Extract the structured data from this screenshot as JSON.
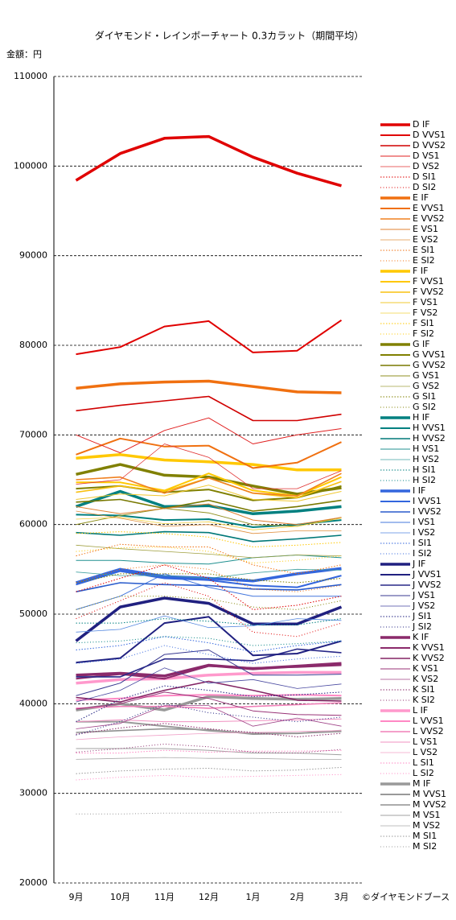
{
  "chart_data": {
    "type": "line",
    "title": "ダイヤモンド・レインボーチャート 0.3カラット（期間平均）",
    "y_label": "金額：円",
    "copyright": "©ダイヤモンドブース",
    "categories": [
      "9月",
      "10月",
      "11月",
      "12月",
      "1月",
      "2月",
      "3月"
    ],
    "ylim": [
      20000,
      110000
    ],
    "yticks": [
      20000,
      30000,
      40000,
      50000,
      60000,
      70000,
      80000,
      90000,
      100000,
      110000
    ],
    "grid": true,
    "legend": "right",
    "series": [
      {
        "name": "D IF",
        "color": "#e00000",
        "values": [
          98400,
          101400,
          103100,
          103300,
          101000,
          99200,
          97800
        ]
      },
      {
        "name": "D VVS1",
        "color": "#e00000",
        "values": [
          79000,
          79800,
          82100,
          82700,
          79200,
          79400,
          82800
        ]
      },
      {
        "name": "D VVS2",
        "color": "#d00000",
        "values": [
          72700,
          73300,
          73800,
          74300,
          71600,
          71600,
          72300
        ]
      },
      {
        "name": "D VS1",
        "color": "#e02020",
        "values": [
          70000,
          68000,
          70500,
          71900,
          69000,
          70000,
          70700
        ]
      },
      {
        "name": "D VS2",
        "color": "#e03030",
        "values": [
          64500,
          65000,
          69000,
          67500,
          64000,
          64000,
          66000
        ]
      },
      {
        "name": "D SI1",
        "color": "#e00000",
        "values": [
          52500,
          54000,
          55500,
          54000,
          50500,
          51000,
          52000
        ]
      },
      {
        "name": "D SI2",
        "color": "#e00000",
        "values": [
          49500,
          51500,
          53500,
          52000,
          48000,
          47500,
          49000
        ]
      },
      {
        "name": "E IF",
        "color": "#f07010",
        "values": [
          75200,
          75700,
          75900,
          76000,
          75400,
          74800,
          74700
        ]
      },
      {
        "name": "E VVS1",
        "color": "#f07010",
        "values": [
          67800,
          69600,
          68700,
          68800,
          66300,
          66900,
          69200
        ]
      },
      {
        "name": "E VVS2",
        "color": "#f08020",
        "values": [
          65000,
          65300,
          63500,
          65200,
          63500,
          63200,
          65700
        ]
      },
      {
        "name": "E VS1",
        "color": "#e08030",
        "values": [
          62000,
          61200,
          61800,
          62300,
          60500,
          60000,
          60800
        ]
      },
      {
        "name": "E VS2",
        "color": "#e09040",
        "values": [
          61500,
          60700,
          59800,
          60000,
          59000,
          59300,
          59300
        ]
      },
      {
        "name": "E SI1",
        "color": "#f07010",
        "values": [
          56500,
          57800,
          57500,
          57500,
          55500,
          54500,
          55500
        ]
      },
      {
        "name": "E SI2",
        "color": "#f07010",
        "values": [
          53500,
          55000,
          55500,
          55000,
          52800,
          52500,
          53200
        ]
      },
      {
        "name": "F IF",
        "color": "#ffc800",
        "values": [
          67400,
          67800,
          67200,
          67000,
          66700,
          66100,
          66100
        ]
      },
      {
        "name": "F VVS1",
        "color": "#ffc800",
        "values": [
          64700,
          64700,
          63800,
          65700,
          63800,
          63200,
          65300
        ]
      },
      {
        "name": "F VVS2",
        "color": "#f8c010",
        "values": [
          63600,
          64300,
          63700,
          65200,
          63500,
          63000,
          64800
        ]
      },
      {
        "name": "F VS1",
        "color": "#f0c830",
        "values": [
          62800,
          63400,
          63200,
          64400,
          62800,
          62600,
          63700
        ]
      },
      {
        "name": "F VS2",
        "color": "#f0d040",
        "values": [
          60600,
          60800,
          60100,
          60300,
          59400,
          59800,
          60700
        ]
      },
      {
        "name": "F SI1",
        "color": "#ffc800",
        "values": [
          59000,
          59200,
          59000,
          58600,
          57500,
          57700,
          58000
        ]
      },
      {
        "name": "F SI2",
        "color": "#ffc800",
        "values": [
          57000,
          57400,
          57500,
          57000,
          55700,
          56000,
          56500
        ]
      },
      {
        "name": "G IF",
        "color": "#808000",
        "values": [
          65600,
          66700,
          65500,
          65300,
          64300,
          63400,
          64100
        ]
      },
      {
        "name": "G VVS1",
        "color": "#808000",
        "values": [
          64000,
          64300,
          63600,
          63900,
          62700,
          63000,
          64300
        ]
      },
      {
        "name": "G VVS2",
        "color": "#787800",
        "values": [
          62500,
          62800,
          61800,
          62700,
          61500,
          62000,
          62700
        ]
      },
      {
        "name": "G VS1",
        "color": "#909020",
        "values": [
          60000,
          61000,
          61800,
          61300,
          60000,
          59800,
          60800
        ]
      },
      {
        "name": "G VS2",
        "color": "#a0a040",
        "values": [
          57700,
          57300,
          57000,
          56700,
          56300,
          56600,
          56500
        ]
      },
      {
        "name": "G SI1",
        "color": "#808000",
        "values": [
          53500,
          54500,
          54500,
          54500,
          53800,
          53500,
          54000
        ]
      },
      {
        "name": "G SI2",
        "color": "#808000",
        "values": [
          50500,
          52000,
          52000,
          51700,
          50800,
          50500,
          51500
        ]
      },
      {
        "name": "H IF",
        "color": "#008080",
        "values": [
          62000,
          63700,
          62000,
          62100,
          61200,
          61500,
          62000
        ]
      },
      {
        "name": "H VVS1",
        "color": "#008080",
        "values": [
          61100,
          61000,
          60500,
          60600,
          59700,
          60000,
          60500
        ]
      },
      {
        "name": "H VVS2",
        "color": "#007878",
        "values": [
          59100,
          58800,
          59200,
          59100,
          58100,
          58400,
          58800
        ]
      },
      {
        "name": "H VS1",
        "color": "#209090",
        "values": [
          56000,
          56000,
          55700,
          55600,
          56300,
          56600,
          56300
        ]
      },
      {
        "name": "H VS2",
        "color": "#40a0a0",
        "values": [
          54700,
          54300,
          54300,
          54000,
          54600,
          55000,
          54900
        ]
      },
      {
        "name": "H SI1",
        "color": "#008080",
        "values": [
          49000,
          49000,
          49500,
          49200,
          48800,
          48800,
          49500
        ]
      },
      {
        "name": "H SI2",
        "color": "#008080",
        "values": [
          46800,
          47000,
          47500,
          47300,
          46500,
          46700,
          47000
        ]
      },
      {
        "name": "I IF",
        "color": "#3366dd",
        "values": [
          53500,
          55000,
          54200,
          54000,
          53700,
          54500,
          55100
        ]
      },
      {
        "name": "I VVS1",
        "color": "#3366dd",
        "values": [
          53300,
          54800,
          54000,
          53800,
          53200,
          53000,
          54300
        ]
      },
      {
        "name": "I VVS2",
        "color": "#2a5ccc",
        "values": [
          52500,
          53500,
          53300,
          53200,
          52800,
          52700,
          53300
        ]
      },
      {
        "name": "I VS1",
        "color": "#4477dd",
        "values": [
          50500,
          52000,
          54500,
          53000,
          52000,
          52000,
          52000
        ]
      },
      {
        "name": "I VS2",
        "color": "#5588e0",
        "values": [
          48000,
          48300,
          49800,
          48500,
          48700,
          49500,
          49300
        ]
      },
      {
        "name": "I SI1",
        "color": "#3366dd",
        "values": [
          46000,
          46500,
          47500,
          46800,
          45800,
          46500,
          47000
        ]
      },
      {
        "name": "I SI2",
        "color": "#3366dd",
        "values": [
          44500,
          45000,
          46500,
          45500,
          44500,
          45000,
          45300
        ]
      },
      {
        "name": "J IF",
        "color": "#202080",
        "values": [
          47000,
          50800,
          51800,
          51200,
          48900,
          48900,
          50800
        ]
      },
      {
        "name": "J VVS1",
        "color": "#202080",
        "values": [
          44600,
          45100,
          49000,
          49700,
          45400,
          45600,
          47000
        ]
      },
      {
        "name": "J VVS2",
        "color": "#282888",
        "values": [
          43000,
          43000,
          45000,
          45000,
          44800,
          46100,
          45700
        ]
      },
      {
        "name": "J VS1",
        "color": "#383890",
        "values": [
          40900,
          42300,
          45500,
          46000,
          43200,
          43200,
          43300
        ]
      },
      {
        "name": "J VS2",
        "color": "#4848a0",
        "values": [
          40200,
          41500,
          44000,
          42300,
          42700,
          41700,
          42200
        ]
      },
      {
        "name": "J SI1",
        "color": "#202080",
        "values": [
          38000,
          40500,
          42000,
          41500,
          40800,
          41000,
          41300
        ]
      },
      {
        "name": "J SI2",
        "color": "#202080",
        "values": [
          36500,
          38000,
          40000,
          39000,
          38500,
          38000,
          38500
        ]
      },
      {
        "name": "K IF",
        "color": "#8b2a6b",
        "values": [
          43200,
          43400,
          43100,
          44300,
          43900,
          44200,
          44500
        ]
      },
      {
        "name": "K VVS1",
        "color": "#8b2a6b",
        "values": [
          42800,
          43300,
          42800,
          44200,
          44000,
          44100,
          44300
        ]
      },
      {
        "name": "K VVS2",
        "color": "#832464",
        "values": [
          40700,
          40200,
          41500,
          42500,
          41500,
          40400,
          40300
        ]
      },
      {
        "name": "K VS1",
        "color": "#993377",
        "values": [
          39400,
          40000,
          41300,
          40600,
          39200,
          38800,
          38700
        ]
      },
      {
        "name": "K VS2",
        "color": "#a04488",
        "values": [
          37200,
          37800,
          39800,
          39800,
          37500,
          38400,
          37500
        ]
      },
      {
        "name": "K SI1",
        "color": "#8b2a6b",
        "values": [
          36600,
          37300,
          37800,
          37200,
          36800,
          36300,
          36700
        ]
      },
      {
        "name": "K SI2",
        "color": "#8b2a6b",
        "values": [
          34600,
          35000,
          35500,
          35200,
          34600,
          34500,
          34900
        ]
      },
      {
        "name": "L IF",
        "color": "#ff99cc",
        "values": [
          42300,
          42700,
          42800,
          43200,
          43400,
          43500,
          43500
        ]
      },
      {
        "name": "L VVS1",
        "color": "#ff88c4",
        "values": [
          40400,
          40600,
          40900,
          41000,
          40900,
          41000,
          40900
        ]
      },
      {
        "name": "L VVS2",
        "color": "#f080b8",
        "values": [
          39500,
          39700,
          39700,
          39500,
          39700,
          39900,
          40100
        ]
      },
      {
        "name": "L VS1",
        "color": "#f090c0",
        "values": [
          38000,
          38200,
          38000,
          38000,
          38100,
          38200,
          38300
        ]
      },
      {
        "name": "L VS2",
        "color": "#f0a0c8",
        "values": [
          36000,
          36300,
          36500,
          36700,
          36800,
          36900,
          37000
        ]
      },
      {
        "name": "L SI1",
        "color": "#ff88c4",
        "values": [
          34500,
          34500,
          34800,
          34600,
          34700,
          34700,
          34800
        ]
      },
      {
        "name": "L SI2",
        "color": "#ff88c4",
        "values": [
          31500,
          31800,
          32000,
          31800,
          31900,
          32000,
          32100
        ]
      },
      {
        "name": "M IF",
        "color": "#999999",
        "values": [
          39300,
          40000,
          39300,
          40800,
          40600,
          40500,
          40600
        ]
      },
      {
        "name": "M VVS1",
        "color": "#999999",
        "values": [
          38000,
          38000,
          37500,
          37000,
          36700,
          36700,
          37000
        ]
      },
      {
        "name": "M VVS2",
        "color": "#909090",
        "values": [
          36800,
          37000,
          37200,
          37100,
          36600,
          36700,
          36900
        ]
      },
      {
        "name": "M VS1",
        "color": "#a0a0a0",
        "values": [
          35000,
          35000,
          35000,
          34800,
          34500,
          34500,
          34300
        ]
      },
      {
        "name": "M VS2",
        "color": "#aaaaaa",
        "values": [
          33800,
          33900,
          34000,
          33900,
          33900,
          33800,
          33800
        ]
      },
      {
        "name": "M SI1",
        "color": "#999999",
        "values": [
          32200,
          32500,
          32700,
          32800,
          32500,
          32600,
          32900
        ]
      },
      {
        "name": "M SI2",
        "color": "#999999",
        "values": [
          27700,
          27700,
          27800,
          27800,
          27800,
          27900,
          27900
        ]
      }
    ]
  }
}
